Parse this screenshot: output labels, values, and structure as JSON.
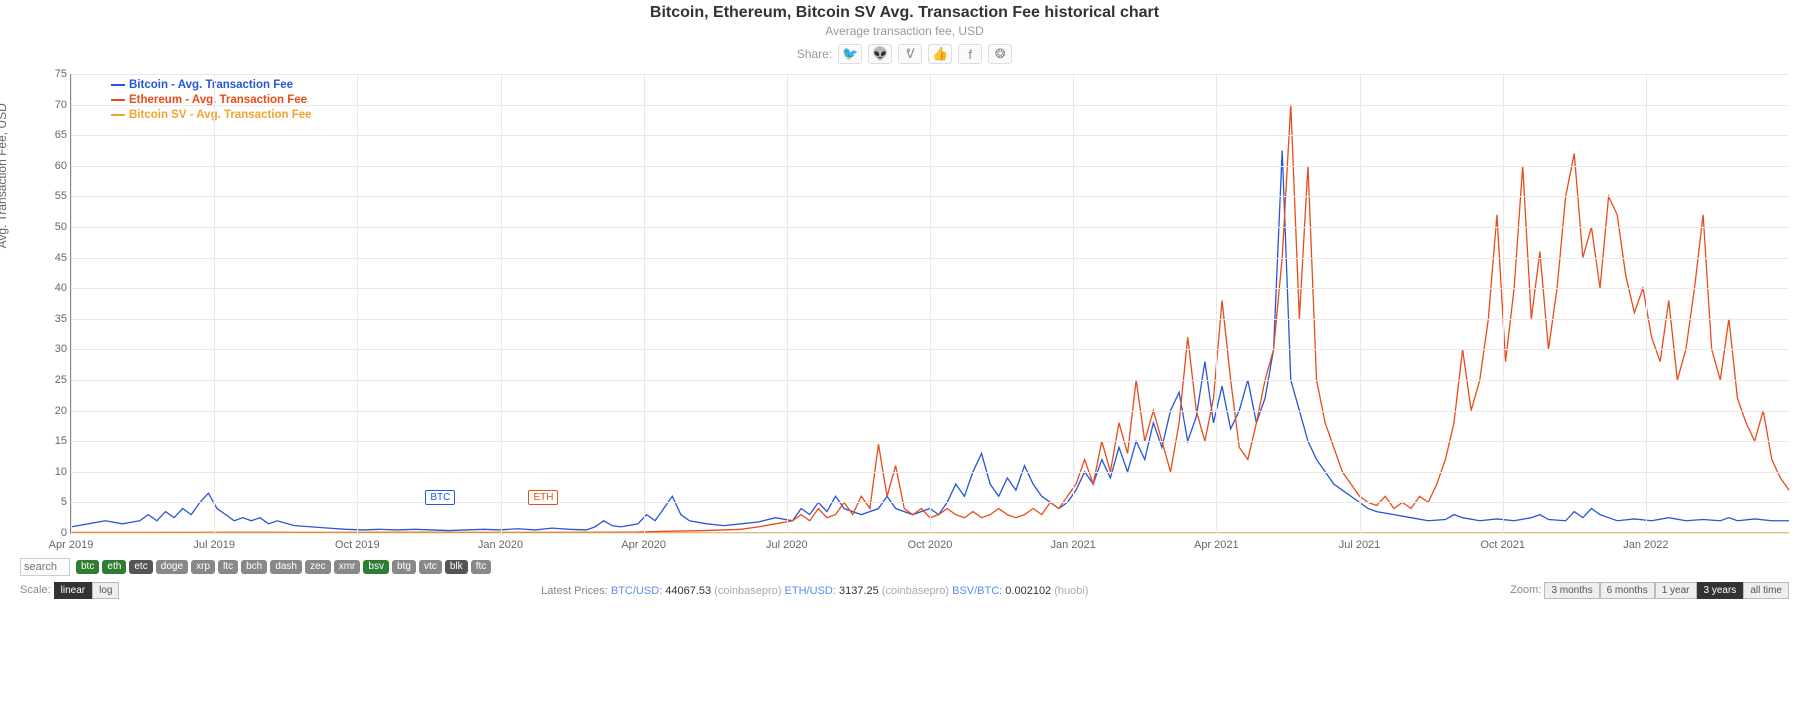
{
  "title": "Bitcoin, Ethereum, Bitcoin SV Avg. Transaction Fee historical chart",
  "subtitle": "Average transaction fee, USD",
  "share_label": "Share:",
  "y_axis_label": "Avg. Transaction Fee, USD",
  "chart": {
    "type": "line",
    "ylim": [
      0,
      75
    ],
    "ytick_step": 5,
    "x_labels": [
      "Apr 2019",
      "Jul 2019",
      "Oct 2019",
      "Jan 2020",
      "Apr 2020",
      "Jul 2020",
      "Oct 2020",
      "Jan 2021",
      "Apr 2021",
      "Jul 2021",
      "Oct 2021",
      "Jan 2022"
    ],
    "x_count": 12,
    "grid_color": "#e9e9e9",
    "background_color": "#ffffff",
    "series": [
      {
        "name": "Bitcoin - Avg. Transaction Fee",
        "color": "#2757d6",
        "flag": "BTC",
        "flag_x": 0.215,
        "stroke_width": 1.3,
        "points": [
          [
            0.0,
            1
          ],
          [
            0.01,
            1.5
          ],
          [
            0.02,
            2
          ],
          [
            0.03,
            1.5
          ],
          [
            0.04,
            2
          ],
          [
            0.045,
            3
          ],
          [
            0.05,
            2
          ],
          [
            0.055,
            3.5
          ],
          [
            0.06,
            2.5
          ],
          [
            0.065,
            4
          ],
          [
            0.07,
            3
          ],
          [
            0.075,
            5
          ],
          [
            0.08,
            6.5
          ],
          [
            0.085,
            4
          ],
          [
            0.09,
            3
          ],
          [
            0.095,
            2
          ],
          [
            0.1,
            2.5
          ],
          [
            0.105,
            2
          ],
          [
            0.11,
            2.5
          ],
          [
            0.115,
            1.5
          ],
          [
            0.12,
            2
          ],
          [
            0.13,
            1.2
          ],
          [
            0.14,
            1
          ],
          [
            0.15,
            0.8
          ],
          [
            0.16,
            0.6
          ],
          [
            0.17,
            0.5
          ],
          [
            0.18,
            0.6
          ],
          [
            0.19,
            0.5
          ],
          [
            0.2,
            0.6
          ],
          [
            0.21,
            0.5
          ],
          [
            0.22,
            0.4
          ],
          [
            0.23,
            0.5
          ],
          [
            0.24,
            0.6
          ],
          [
            0.25,
            0.5
          ],
          [
            0.26,
            0.7
          ],
          [
            0.27,
            0.5
          ],
          [
            0.28,
            0.8
          ],
          [
            0.29,
            0.6
          ],
          [
            0.3,
            0.5
          ],
          [
            0.305,
            1
          ],
          [
            0.31,
            2
          ],
          [
            0.315,
            1.2
          ],
          [
            0.32,
            1
          ],
          [
            0.33,
            1.5
          ],
          [
            0.335,
            3
          ],
          [
            0.34,
            2
          ],
          [
            0.345,
            4
          ],
          [
            0.35,
            6
          ],
          [
            0.355,
            3
          ],
          [
            0.36,
            2
          ],
          [
            0.37,
            1.5
          ],
          [
            0.38,
            1.2
          ],
          [
            0.39,
            1.5
          ],
          [
            0.4,
            1.8
          ],
          [
            0.41,
            2.5
          ],
          [
            0.42,
            2
          ],
          [
            0.425,
            4
          ],
          [
            0.43,
            3
          ],
          [
            0.435,
            5
          ],
          [
            0.44,
            3.5
          ],
          [
            0.445,
            6
          ],
          [
            0.45,
            4
          ],
          [
            0.46,
            3
          ],
          [
            0.47,
            4
          ],
          [
            0.475,
            6
          ],
          [
            0.48,
            4
          ],
          [
            0.49,
            3
          ],
          [
            0.5,
            4
          ],
          [
            0.505,
            3
          ],
          [
            0.51,
            5
          ],
          [
            0.515,
            8
          ],
          [
            0.52,
            6
          ],
          [
            0.525,
            10
          ],
          [
            0.53,
            13
          ],
          [
            0.535,
            8
          ],
          [
            0.54,
            6
          ],
          [
            0.545,
            9
          ],
          [
            0.55,
            7
          ],
          [
            0.555,
            11
          ],
          [
            0.56,
            8
          ],
          [
            0.565,
            6
          ],
          [
            0.57,
            5
          ],
          [
            0.575,
            4
          ],
          [
            0.58,
            5
          ],
          [
            0.585,
            7
          ],
          [
            0.59,
            10
          ],
          [
            0.595,
            8
          ],
          [
            0.6,
            12
          ],
          [
            0.605,
            9
          ],
          [
            0.61,
            14
          ],
          [
            0.615,
            10
          ],
          [
            0.62,
            15
          ],
          [
            0.625,
            12
          ],
          [
            0.63,
            18
          ],
          [
            0.635,
            14
          ],
          [
            0.64,
            20
          ],
          [
            0.645,
            23
          ],
          [
            0.65,
            15
          ],
          [
            0.655,
            19
          ],
          [
            0.66,
            28
          ],
          [
            0.665,
            18
          ],
          [
            0.67,
            24
          ],
          [
            0.675,
            17
          ],
          [
            0.68,
            20
          ],
          [
            0.685,
            25
          ],
          [
            0.69,
            18
          ],
          [
            0.695,
            22
          ],
          [
            0.7,
            30
          ],
          [
            0.705,
            62.5
          ],
          [
            0.71,
            25
          ],
          [
            0.715,
            20
          ],
          [
            0.72,
            15
          ],
          [
            0.725,
            12
          ],
          [
            0.73,
            10
          ],
          [
            0.735,
            8
          ],
          [
            0.74,
            7
          ],
          [
            0.745,
            6
          ],
          [
            0.75,
            5
          ],
          [
            0.755,
            4
          ],
          [
            0.76,
            3.5
          ],
          [
            0.77,
            3
          ],
          [
            0.78,
            2.5
          ],
          [
            0.79,
            2
          ],
          [
            0.8,
            2.2
          ],
          [
            0.805,
            3
          ],
          [
            0.81,
            2.5
          ],
          [
            0.82,
            2
          ],
          [
            0.83,
            2.3
          ],
          [
            0.84,
            2
          ],
          [
            0.85,
            2.5
          ],
          [
            0.855,
            3
          ],
          [
            0.86,
            2.2
          ],
          [
            0.87,
            2
          ],
          [
            0.875,
            3.5
          ],
          [
            0.88,
            2.5
          ],
          [
            0.885,
            4
          ],
          [
            0.89,
            3
          ],
          [
            0.895,
            2.5
          ],
          [
            0.9,
            2
          ],
          [
            0.91,
            2.3
          ],
          [
            0.92,
            2
          ],
          [
            0.93,
            2.5
          ],
          [
            0.94,
            2
          ],
          [
            0.95,
            2.2
          ],
          [
            0.96,
            2
          ],
          [
            0.965,
            2.5
          ],
          [
            0.97,
            2
          ],
          [
            0.98,
            2.3
          ],
          [
            0.99,
            2
          ],
          [
            1.0,
            2
          ]
        ]
      },
      {
        "name": "Ethereum - Avg. Transaction Fee",
        "color": "#e84c1a",
        "flag": "ETH",
        "flag_x": 0.275,
        "stroke_width": 1.3,
        "points": [
          [
            0.0,
            0.1
          ],
          [
            0.05,
            0.1
          ],
          [
            0.1,
            0.12
          ],
          [
            0.15,
            0.1
          ],
          [
            0.2,
            0.12
          ],
          [
            0.25,
            0.1
          ],
          [
            0.3,
            0.12
          ],
          [
            0.33,
            0.15
          ],
          [
            0.35,
            0.3
          ],
          [
            0.37,
            0.4
          ],
          [
            0.39,
            0.6
          ],
          [
            0.4,
            1
          ],
          [
            0.41,
            1.5
          ],
          [
            0.42,
            2
          ],
          [
            0.425,
            3
          ],
          [
            0.43,
            2
          ],
          [
            0.435,
            4
          ],
          [
            0.44,
            2.5
          ],
          [
            0.445,
            3
          ],
          [
            0.45,
            5
          ],
          [
            0.455,
            3
          ],
          [
            0.46,
            6
          ],
          [
            0.465,
            4
          ],
          [
            0.47,
            14.5
          ],
          [
            0.475,
            6
          ],
          [
            0.48,
            11
          ],
          [
            0.485,
            4
          ],
          [
            0.49,
            3
          ],
          [
            0.495,
            4
          ],
          [
            0.5,
            2.5
          ],
          [
            0.505,
            3
          ],
          [
            0.51,
            4
          ],
          [
            0.515,
            3
          ],
          [
            0.52,
            2.5
          ],
          [
            0.525,
            3.5
          ],
          [
            0.53,
            2.5
          ],
          [
            0.535,
            3
          ],
          [
            0.54,
            4
          ],
          [
            0.545,
            3
          ],
          [
            0.55,
            2.5
          ],
          [
            0.555,
            3
          ],
          [
            0.56,
            4
          ],
          [
            0.565,
            3
          ],
          [
            0.57,
            5
          ],
          [
            0.575,
            4
          ],
          [
            0.58,
            6
          ],
          [
            0.585,
            8
          ],
          [
            0.59,
            12
          ],
          [
            0.595,
            8
          ],
          [
            0.6,
            15
          ],
          [
            0.605,
            10
          ],
          [
            0.61,
            18
          ],
          [
            0.615,
            13
          ],
          [
            0.62,
            25
          ],
          [
            0.625,
            15
          ],
          [
            0.63,
            20
          ],
          [
            0.635,
            15
          ],
          [
            0.64,
            10
          ],
          [
            0.645,
            18
          ],
          [
            0.65,
            32
          ],
          [
            0.655,
            20
          ],
          [
            0.66,
            15
          ],
          [
            0.665,
            22
          ],
          [
            0.67,
            38
          ],
          [
            0.675,
            25
          ],
          [
            0.68,
            14
          ],
          [
            0.685,
            12
          ],
          [
            0.69,
            18
          ],
          [
            0.695,
            25
          ],
          [
            0.7,
            30
          ],
          [
            0.705,
            45
          ],
          [
            0.71,
            70
          ],
          [
            0.715,
            35
          ],
          [
            0.72,
            60
          ],
          [
            0.725,
            25
          ],
          [
            0.73,
            18
          ],
          [
            0.735,
            14
          ],
          [
            0.74,
            10
          ],
          [
            0.745,
            8
          ],
          [
            0.75,
            6
          ],
          [
            0.755,
            5
          ],
          [
            0.76,
            4.5
          ],
          [
            0.765,
            6
          ],
          [
            0.77,
            4
          ],
          [
            0.775,
            5
          ],
          [
            0.78,
            4
          ],
          [
            0.785,
            6
          ],
          [
            0.79,
            5
          ],
          [
            0.795,
            8
          ],
          [
            0.8,
            12
          ],
          [
            0.805,
            18
          ],
          [
            0.81,
            30
          ],
          [
            0.815,
            20
          ],
          [
            0.82,
            25
          ],
          [
            0.825,
            35
          ],
          [
            0.83,
            52
          ],
          [
            0.835,
            28
          ],
          [
            0.84,
            40
          ],
          [
            0.845,
            60
          ],
          [
            0.85,
            35
          ],
          [
            0.855,
            46
          ],
          [
            0.86,
            30
          ],
          [
            0.865,
            40
          ],
          [
            0.87,
            55
          ],
          [
            0.875,
            62
          ],
          [
            0.88,
            45
          ],
          [
            0.885,
            50
          ],
          [
            0.89,
            40
          ],
          [
            0.895,
            55
          ],
          [
            0.9,
            52
          ],
          [
            0.905,
            42
          ],
          [
            0.91,
            36
          ],
          [
            0.915,
            40
          ],
          [
            0.92,
            32
          ],
          [
            0.925,
            28
          ],
          [
            0.93,
            38
          ],
          [
            0.935,
            25
          ],
          [
            0.94,
            30
          ],
          [
            0.945,
            40
          ],
          [
            0.95,
            52
          ],
          [
            0.955,
            30
          ],
          [
            0.96,
            25
          ],
          [
            0.965,
            35
          ],
          [
            0.97,
            22
          ],
          [
            0.975,
            18
          ],
          [
            0.98,
            15
          ],
          [
            0.985,
            20
          ],
          [
            0.99,
            12
          ],
          [
            0.995,
            9
          ],
          [
            1.0,
            7
          ]
        ]
      },
      {
        "name": "Bitcoin SV - Avg. Transaction Fee",
        "color": "#f0a430",
        "flag": null,
        "stroke_width": 1.3,
        "points": [
          [
            0.0,
            0.02
          ],
          [
            0.1,
            0.02
          ],
          [
            0.2,
            0.02
          ],
          [
            0.3,
            0.02
          ],
          [
            0.4,
            0.02
          ],
          [
            0.5,
            0.02
          ],
          [
            0.6,
            0.02
          ],
          [
            0.7,
            0.02
          ],
          [
            0.8,
            0.02
          ],
          [
            0.9,
            0.02
          ],
          [
            1.0,
            0.02
          ]
        ]
      }
    ]
  },
  "search_placeholder": "search",
  "coin_tags": [
    {
      "label": "btc",
      "active": true
    },
    {
      "label": "eth",
      "active": true
    },
    {
      "label": "etc",
      "active": false,
      "dark": true
    },
    {
      "label": "doge",
      "active": false
    },
    {
      "label": "xrp",
      "active": false
    },
    {
      "label": "ltc",
      "active": false
    },
    {
      "label": "bch",
      "active": false
    },
    {
      "label": "dash",
      "active": false
    },
    {
      "label": "zec",
      "active": false
    },
    {
      "label": "xmr",
      "active": false
    },
    {
      "label": "bsv",
      "active": true
    },
    {
      "label": "btg",
      "active": false
    },
    {
      "label": "vtc",
      "active": false
    },
    {
      "label": "blk",
      "active": false,
      "dark": true
    },
    {
      "label": "ftc",
      "active": false
    }
  ],
  "scale_label": "Scale:",
  "scale_options": [
    {
      "label": "linear",
      "active": true
    },
    {
      "label": "log",
      "active": false
    }
  ],
  "latest_prices_label": "Latest Prices:",
  "prices": [
    {
      "pair": "BTC/USD",
      "value": "44067.53",
      "source": "(coinbasepro)"
    },
    {
      "pair": "ETH/USD",
      "value": "3137.25",
      "source": "(coinbasepro)"
    },
    {
      "pair": "BSV/BTC",
      "value": "0.002102",
      "source": "(huobi)"
    }
  ],
  "zoom_label": "Zoom:",
  "zoom_options": [
    {
      "label": "3 months",
      "active": false
    },
    {
      "label": "6 months",
      "active": false
    },
    {
      "label": "1 year",
      "active": false
    },
    {
      "label": "3 years",
      "active": true
    },
    {
      "label": "all time",
      "active": false
    }
  ]
}
